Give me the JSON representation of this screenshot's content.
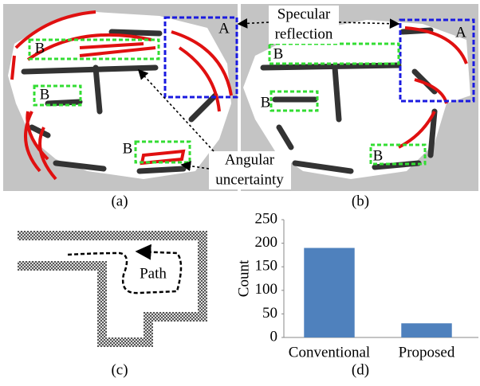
{
  "panels": {
    "a": {
      "caption": "(a)",
      "labels": [
        "A",
        "B",
        "B",
        "B"
      ]
    },
    "b": {
      "caption": "(b)",
      "labels": [
        "A",
        "B",
        "B",
        "B"
      ]
    },
    "c": {
      "caption": "(c)",
      "path_label": "Path"
    },
    "d": {
      "caption": "(d)"
    }
  },
  "annotations": {
    "specular": [
      "Specular",
      "reflection"
    ],
    "angular": [
      "Angular",
      "uncertainty"
    ]
  },
  "chart_data": {
    "type": "bar",
    "y_label": "Count",
    "categories": [
      "Conventional",
      "Proposed"
    ],
    "values": [
      190,
      30
    ],
    "color": "#4f81bd",
    "ylim": [
      0,
      250
    ],
    "yticks": [
      0,
      50,
      100,
      150,
      200,
      250
    ],
    "grid": false
  }
}
